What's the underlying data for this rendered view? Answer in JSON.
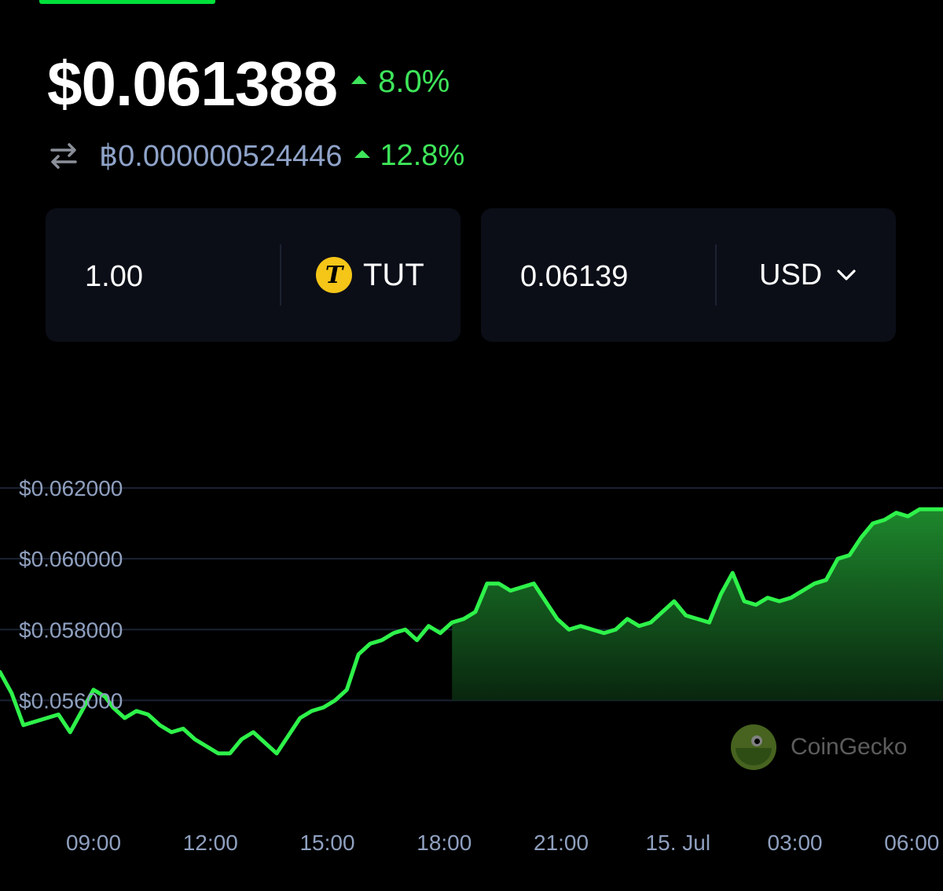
{
  "price": {
    "main": "$0.061388",
    "change_24h": "8.0%",
    "btc_price": "฿0.000000524446",
    "btc_change": "12.8%",
    "accent_up": "#3ee55a"
  },
  "converter": {
    "amount": "1.00",
    "token_symbol": "TUT",
    "token_logo": "tut-coin-logo",
    "converted_value": "0.06139",
    "currency": "USD"
  },
  "chart_data": {
    "type": "area",
    "title": "",
    "xlabel": "",
    "ylabel": "",
    "y_tick_labels": [
      "$0.062000",
      "$0.060000",
      "$0.058000",
      "$0.056000"
    ],
    "y_ticks": [
      0.062,
      0.06,
      0.058,
      0.056
    ],
    "x_tick_labels": [
      "09:00",
      "12:00",
      "15:00",
      "18:00",
      "21:00",
      "15. Jul",
      "03:00",
      "06:00"
    ],
    "x_tick_hours": [
      9,
      12,
      15,
      18,
      21,
      24,
      27,
      30
    ],
    "xlim_hours": [
      6.6,
      30.8
    ],
    "ylim": [
      0.0527,
      0.0638
    ],
    "grid": true,
    "line_color": "#2ef24a",
    "fill_start_hour": 18.0,
    "series": [
      {
        "x": [
          6.6,
          6.9,
          7.2,
          7.5,
          7.8,
          8.1,
          8.4,
          8.7,
          9.0,
          9.3,
          9.5,
          9.8,
          10.1,
          10.4,
          10.7,
          11.0,
          11.3,
          11.6,
          11.9,
          12.2,
          12.5,
          12.8,
          13.1,
          13.4,
          13.7,
          14.0,
          14.3,
          14.6,
          14.9,
          15.2,
          15.5,
          15.8,
          16.1,
          16.4,
          16.7,
          17.0,
          17.3,
          17.6,
          17.9,
          18.2,
          18.5,
          18.8,
          19.1,
          19.4,
          19.7,
          20.0,
          20.3,
          20.6,
          20.9,
          21.2,
          21.5,
          21.8,
          22.1,
          22.4,
          22.7,
          23.0,
          23.3,
          23.6,
          23.9,
          24.2,
          24.5,
          24.8,
          25.1,
          25.4,
          25.7,
          26.0,
          26.3,
          26.6,
          26.9,
          27.2,
          27.5,
          27.8,
          28.1,
          28.4,
          28.7,
          29.0,
          29.3,
          29.6,
          29.9,
          30.2,
          30.5,
          30.8
        ],
        "y": [
          0.0568,
          0.0562,
          0.0553,
          0.0554,
          0.0555,
          0.0556,
          0.0551,
          0.0557,
          0.0563,
          0.0561,
          0.0558,
          0.0555,
          0.0557,
          0.0556,
          0.0553,
          0.0551,
          0.0552,
          0.0549,
          0.0547,
          0.0545,
          0.0545,
          0.0549,
          0.0551,
          0.0548,
          0.0545,
          0.055,
          0.0555,
          0.0557,
          0.0558,
          0.056,
          0.0563,
          0.0573,
          0.0576,
          0.0577,
          0.0579,
          0.058,
          0.0577,
          0.0581,
          0.0579,
          0.0582,
          0.0583,
          0.0585,
          0.0593,
          0.0593,
          0.0591,
          0.0592,
          0.0593,
          0.0588,
          0.0583,
          0.058,
          0.0581,
          0.058,
          0.0579,
          0.058,
          0.0583,
          0.0581,
          0.0582,
          0.0585,
          0.0588,
          0.0584,
          0.0583,
          0.0582,
          0.059,
          0.0596,
          0.0588,
          0.0587,
          0.0589,
          0.0588,
          0.0589,
          0.0591,
          0.0593,
          0.0594,
          0.06,
          0.0601,
          0.0606,
          0.061,
          0.0611,
          0.0613,
          0.0612,
          0.0614,
          0.0614,
          0.0614
        ]
      }
    ]
  },
  "watermark": {
    "text": "CoinGecko",
    "logo": "coingecko-logo"
  }
}
